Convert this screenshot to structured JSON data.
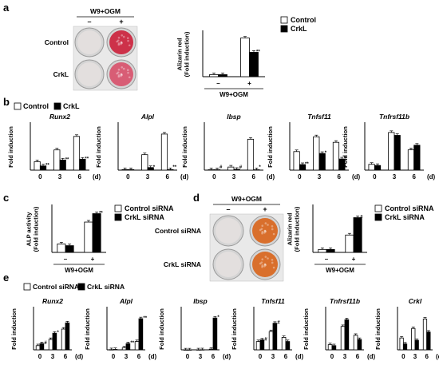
{
  "panels": {
    "a": {
      "letter": "a",
      "treatment": "W9+OGM",
      "well_cols": [
        "–",
        "+"
      ],
      "well_rows": [
        "Control",
        "CrkL"
      ],
      "legend": [
        "Control",
        "CrkL"
      ]
    },
    "b": {
      "letter": "b",
      "legend": [
        "Control",
        "CrkL"
      ]
    },
    "c": {
      "letter": "c",
      "legend": [
        "Control siRNA",
        "CrkL siRNA"
      ]
    },
    "d": {
      "letter": "d",
      "treatment": "W9+OGM",
      "well_cols": [
        "–",
        "+"
      ],
      "well_rows": [
        "Control siRNA",
        "CrkL siRNA"
      ],
      "legend": [
        "Control siRNA",
        "CrkL siRNA"
      ]
    },
    "e": {
      "letter": "e",
      "legend": [
        "Control siRNA",
        "CrkL siRNA"
      ]
    }
  },
  "colors": {
    "control": "#ffffff",
    "knockdown": "#000000",
    "axis": "#000000",
    "well_plate": "#cfcfcf",
    "stain_strong": "#cc1f3a",
    "stain_weak": "#d8506a",
    "stain_orange": "#d9641a"
  },
  "chart_data": [
    {
      "id": "a_chart",
      "type": "bar",
      "ylabel": "Alizarin red\n(Fold induction)",
      "categories": [
        "–",
        "+"
      ],
      "xgroup_label": "W9+OGM",
      "series": [
        {
          "name": "Control",
          "values": [
            1.0,
            19.0
          ]
        },
        {
          "name": "CrkL",
          "values": [
            1.0,
            12.0
          ]
        }
      ],
      "annotations": [
        "",
        "**"
      ],
      "ylim": [
        0,
        22
      ]
    },
    {
      "id": "b_runx2",
      "type": "bar",
      "title": "Runx2",
      "ylabel": "Fold induction",
      "categories": [
        "0",
        "3",
        "6"
      ],
      "x_unit": "(d)",
      "series": [
        {
          "name": "Control",
          "values": [
            1.0,
            2.4,
            4.0
          ]
        },
        {
          "name": "CrkL",
          "values": [
            0.5,
            1.2,
            1.3
          ]
        }
      ],
      "annotations": [
        "**",
        "**",
        "**"
      ],
      "ylim": [
        0,
        5.5
      ]
    },
    {
      "id": "b_alpl",
      "type": "bar",
      "title": "Alpl",
      "ylabel": "Fold induction",
      "categories": [
        "0",
        "3",
        "6"
      ],
      "x_unit": "(d)",
      "series": [
        {
          "name": "Control",
          "values": [
            1,
            30,
            70
          ]
        },
        {
          "name": "CrkL",
          "values": [
            1,
            5,
            1
          ]
        }
      ],
      "annotations": [
        "",
        "*",
        "**"
      ],
      "ylim": [
        0,
        90
      ]
    },
    {
      "id": "b_ibsp",
      "type": "bar",
      "title": "Ibsp",
      "ylabel": "Fold induction",
      "categories": [
        "0",
        "3",
        "6"
      ],
      "x_unit": "(d)",
      "series": [
        {
          "name": "Control",
          "values": [
            1,
            8,
            80
          ]
        },
        {
          "name": "CrkL",
          "values": [
            1,
            2,
            1
          ]
        }
      ],
      "annotations": [
        "#",
        "#",
        "*"
      ],
      "ylim": [
        0,
        120
      ]
    },
    {
      "id": "b_tnfsf11",
      "type": "bar",
      "title": "Tnfsf11",
      "ylabel": "Fold induction",
      "categories": [
        "0",
        "3",
        "6"
      ],
      "x_unit": "(d)",
      "series": [
        {
          "name": "Control",
          "values": [
            1.0,
            1.8,
            1.5
          ]
        },
        {
          "name": "CrkL",
          "values": [
            0.3,
            0.9,
            0.6
          ]
        }
      ],
      "annotations": [
        "**",
        "*",
        "*"
      ],
      "ylim": [
        0,
        2.5
      ]
    },
    {
      "id": "b_tnfrsf11b",
      "type": "bar",
      "title": "Tnfrsf11b",
      "ylabel": "Fold induction",
      "categories": [
        "0",
        "3",
        "6"
      ],
      "x_unit": "(d)",
      "series": [
        {
          "name": "Control",
          "values": [
            1.0,
            6.5,
            3.5
          ]
        },
        {
          "name": "CrkL",
          "values": [
            0.8,
            6.0,
            4.3
          ]
        }
      ],
      "annotations": [
        "",
        "",
        ""
      ],
      "ylim": [
        0,
        8
      ]
    },
    {
      "id": "c_chart",
      "type": "bar",
      "ylabel": "ALP activity\n(Fold induction)",
      "categories": [
        "–",
        "+"
      ],
      "xgroup_label": "W9+OGM",
      "series": [
        {
          "name": "Control siRNA",
          "values": [
            1.0,
            3.6
          ]
        },
        {
          "name": "CrkL siRNA",
          "values": [
            0.8,
            4.6
          ]
        }
      ],
      "annotations": [
        "",
        "**"
      ],
      "ylim": [
        0,
        5.5
      ]
    },
    {
      "id": "d_chart",
      "type": "bar",
      "ylabel": "Alizarin red\n(Fold induction)",
      "categories": [
        "–",
        "+"
      ],
      "xgroup_label": "W9+OGM",
      "series": [
        {
          "name": "Control siRNA",
          "values": [
            1.0,
            6.0
          ]
        },
        {
          "name": "CrkL siRNA",
          "values": [
            1.0,
            12.0
          ]
        }
      ],
      "annotations": [
        "",
        "#"
      ],
      "ylim": [
        0,
        16
      ]
    },
    {
      "id": "e_runx2",
      "type": "bar",
      "title": "Runx2",
      "ylabel": "Fold induction",
      "categories": [
        "0",
        "3",
        "6"
      ],
      "x_unit": "(d)",
      "series": [
        {
          "name": "Control siRNA",
          "values": [
            1.0,
            2.5,
            5.0
          ]
        },
        {
          "name": "CrkL siRNA",
          "values": [
            1.5,
            4.0,
            6.5
          ]
        }
      ],
      "annotations": [
        "#",
        "*",
        ""
      ],
      "ylim": [
        0,
        10
      ]
    },
    {
      "id": "e_alpl",
      "type": "bar",
      "title": "Alpl",
      "ylabel": "Fold induction",
      "categories": [
        "0",
        "3",
        "6"
      ],
      "x_unit": "(d)",
      "series": [
        {
          "name": "Control siRNA",
          "values": [
            5,
            50,
            200
          ]
        },
        {
          "name": "CrkL siRNA",
          "values": [
            10,
            150,
            750
          ]
        }
      ],
      "annotations": [
        "",
        "**",
        "**"
      ],
      "ylim": [
        0,
        1000
      ]
    },
    {
      "id": "e_ibsp",
      "type": "bar",
      "title": "Ibsp",
      "ylabel": "Fold induction",
      "categories": [
        "0",
        "3",
        "6"
      ],
      "x_unit": "(d)",
      "series": [
        {
          "name": "Control siRNA",
          "values": [
            1,
            5,
            50
          ]
        },
        {
          "name": "CrkL siRNA",
          "values": [
            1,
            10,
            2300
          ]
        }
      ],
      "annotations": [
        "",
        "",
        "*"
      ],
      "ylim": [
        0,
        3000
      ]
    },
    {
      "id": "e_tnfsf11",
      "type": "bar",
      "title": "Tnfsf11",
      "ylabel": "Fold induction",
      "categories": [
        "0",
        "3",
        "6"
      ],
      "x_unit": "(d)",
      "series": [
        {
          "name": "Control siRNA",
          "values": [
            1.0,
            2.2,
            1.5
          ]
        },
        {
          "name": "CrkL siRNA",
          "values": [
            1.2,
            3.2,
            1.0
          ]
        }
      ],
      "annotations": [
        "#",
        "#",
        ""
      ],
      "ylim": [
        0,
        5
      ]
    },
    {
      "id": "e_tnfrsf11b",
      "type": "bar",
      "title": "Tnfrsf11b",
      "ylabel": "Fold induction",
      "categories": [
        "0",
        "3",
        "6"
      ],
      "x_unit": "(d)",
      "series": [
        {
          "name": "Control siRNA",
          "values": [
            1.0,
            4.5,
            2.8
          ]
        },
        {
          "name": "CrkL siRNA",
          "values": [
            0.8,
            5.8,
            2.0
          ]
        }
      ],
      "annotations": [
        "",
        "",
        ""
      ],
      "ylim": [
        0,
        8
      ]
    },
    {
      "id": "e_crkl",
      "type": "bar",
      "title": "Crkl",
      "ylabel": "Fold induction",
      "categories": [
        "0",
        "3",
        "6"
      ],
      "x_unit": "(d)",
      "series": [
        {
          "name": "Control siRNA",
          "values": [
            1.0,
            1.8,
            2.6
          ]
        },
        {
          "name": "CrkL siRNA",
          "values": [
            0.5,
            0.8,
            1.5
          ]
        }
      ],
      "annotations": [
        "",
        "",
        ""
      ],
      "ylim": [
        0,
        3.5
      ]
    }
  ]
}
